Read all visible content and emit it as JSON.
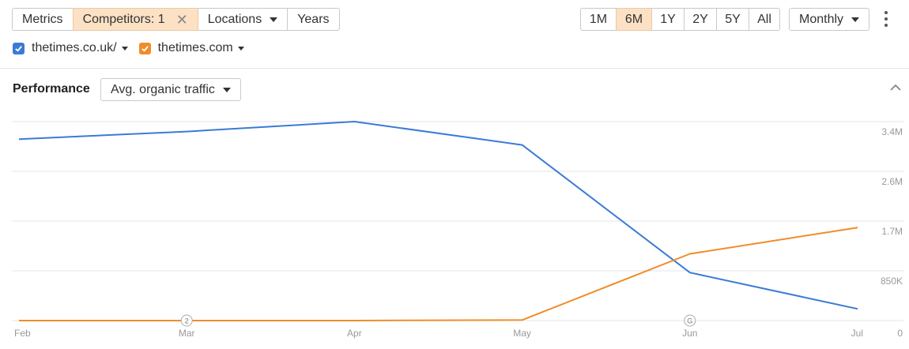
{
  "toolbar": {
    "metrics_label": "Metrics",
    "competitors_label": "Competitors: 1",
    "locations_label": "Locations",
    "years_label": "Years"
  },
  "range": {
    "options": [
      "1M",
      "6M",
      "1Y",
      "2Y",
      "5Y",
      "All"
    ],
    "selected": "6M",
    "interval_label": "Monthly"
  },
  "legend": [
    {
      "label": "thetimes.co.uk/",
      "color": "#3a7bd5",
      "checked": true
    },
    {
      "label": "thetimes.com",
      "color": "#f08c2a",
      "checked": true
    }
  ],
  "performance": {
    "title": "Performance",
    "metric_label": "Avg. organic traffic"
  },
  "chart_data": {
    "type": "line",
    "x": [
      "Feb",
      "Mar",
      "Apr",
      "May",
      "Jun",
      "Jul"
    ],
    "series": [
      {
        "name": "thetimes.co.uk/",
        "color": "#3a7bd5",
        "values": [
          3100000,
          3230000,
          3400000,
          3000000,
          820000,
          200000
        ]
      },
      {
        "name": "thetimes.com",
        "color": "#f08c2a",
        "values": [
          0,
          0,
          0,
          10000,
          1140000,
          1590000
        ]
      }
    ],
    "y_ticks": [
      {
        "value": 0,
        "label": "0"
      },
      {
        "value": 850000,
        "label": "850K"
      },
      {
        "value": 1700000,
        "label": "1.7M"
      },
      {
        "value": 2550000,
        "label": "2.6M"
      },
      {
        "value": 3400000,
        "label": "3.4M"
      }
    ],
    "ylim": [
      0,
      3400000
    ],
    "grid": true,
    "annotations": [
      {
        "x": "Mar",
        "label": "2"
      },
      {
        "x": "Jun",
        "label": "G"
      }
    ]
  }
}
